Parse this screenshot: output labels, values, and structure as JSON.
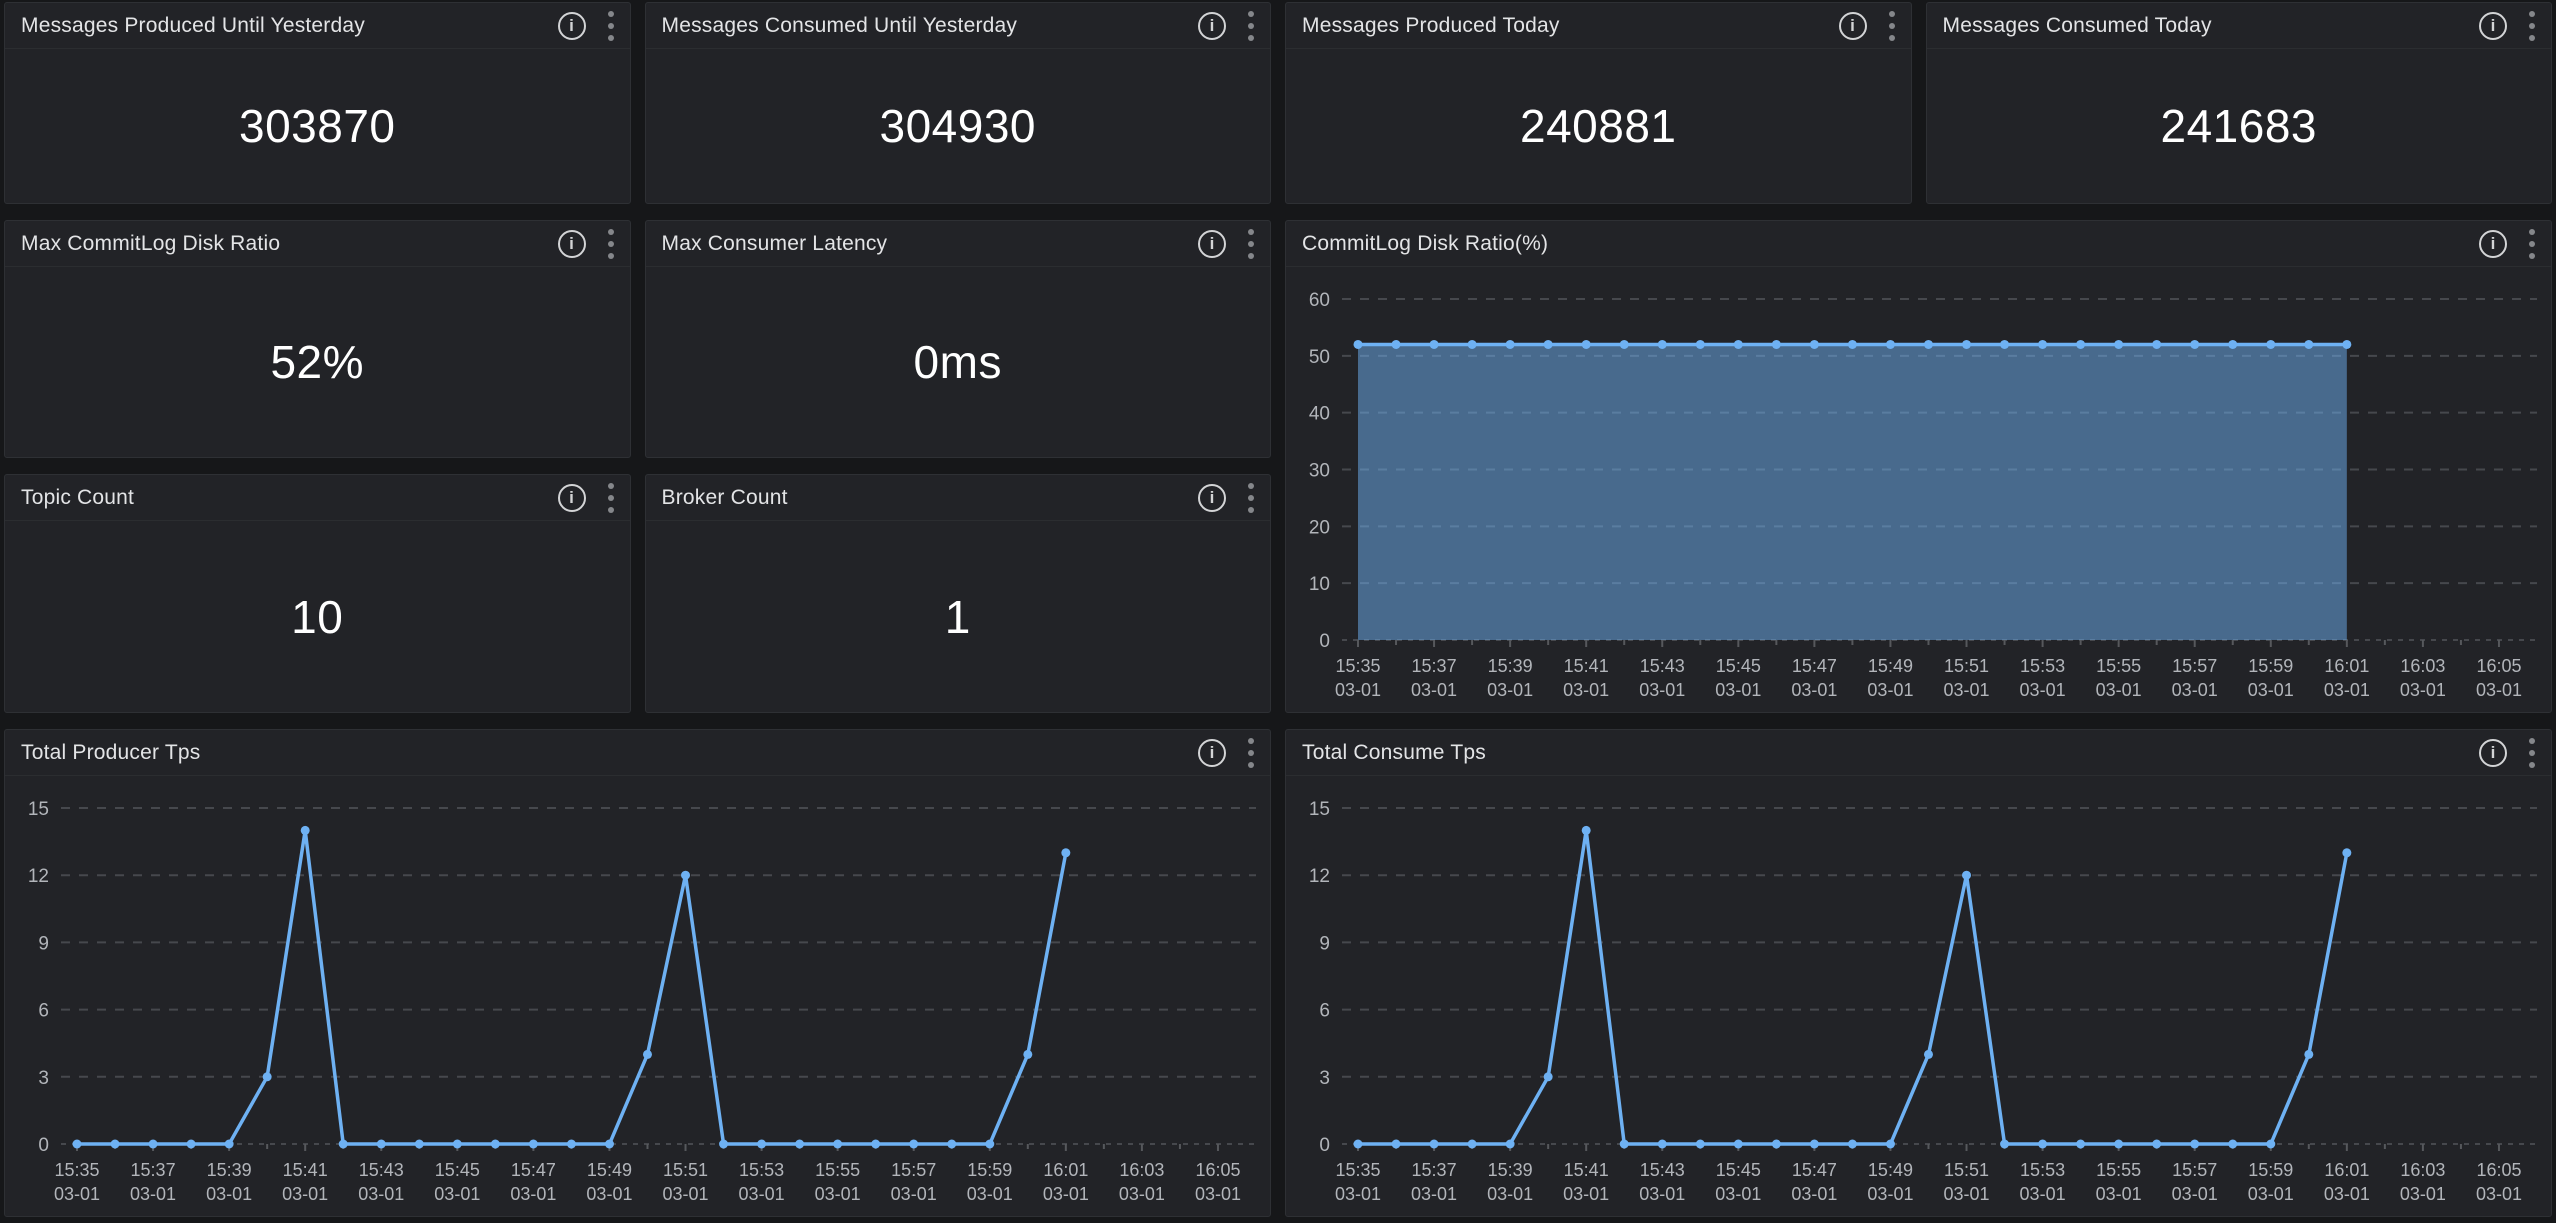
{
  "icons": {
    "info_glyph": "i"
  },
  "colors": {
    "line_blue": "#6eb1f3",
    "fill_blue": "rgba(110,177,243,0.5)",
    "grid": "#46484d",
    "tick": "#56585c",
    "axis_text": "#b2b5ba",
    "panel_bg": "#222327",
    "page_bg": "#161719"
  },
  "stat_panels": [
    {
      "title": "Messages Produced Until Yesterday",
      "value": "303870"
    },
    {
      "title": "Messages Consumed Until Yesterday",
      "value": "304930"
    },
    {
      "title": "Messages Produced Today",
      "value": "240881"
    },
    {
      "title": "Messages Consumed Today",
      "value": "241683"
    },
    {
      "title": "Max CommitLog Disk Ratio",
      "value": "52%"
    },
    {
      "title": "Max Consumer Latency",
      "value": "0ms"
    },
    {
      "title": "Topic Count",
      "value": "10"
    },
    {
      "title": "Broker Count",
      "value": "1"
    }
  ],
  "chart_data": [
    {
      "type": "area",
      "title": "CommitLog Disk Ratio(%)",
      "x_tick_labels": [
        "15:35",
        "15:37",
        "15:39",
        "15:41",
        "15:43",
        "15:45",
        "15:47",
        "15:49",
        "15:51",
        "15:53",
        "15:55",
        "15:57",
        "15:59",
        "16:01",
        "16:03",
        "16:05"
      ],
      "x_tick_sublabel": "03-01",
      "x_tick_step_minutes": 2,
      "x_interval_minutes": 1,
      "x_axis_total_minutes": 31,
      "values": [
        52,
        52,
        52,
        52,
        52,
        52,
        52,
        52,
        52,
        52,
        52,
        52,
        52,
        52,
        52,
        52,
        52,
        52,
        52,
        52,
        52,
        52,
        52,
        52,
        52,
        52,
        52
      ],
      "ylim": [
        0,
        60
      ],
      "yticks": [
        0,
        10,
        20,
        30,
        40,
        50,
        60
      ],
      "grid": "dashed horizontal",
      "legend": false,
      "fill_opacity": 0.5,
      "markers": true
    },
    {
      "type": "line",
      "title": "Total Producer Tps",
      "x_tick_labels": [
        "15:35",
        "15:37",
        "15:39",
        "15:41",
        "15:43",
        "15:45",
        "15:47",
        "15:49",
        "15:51",
        "15:53",
        "15:55",
        "15:57",
        "15:59",
        "16:01",
        "16:03",
        "16:05"
      ],
      "x_tick_sublabel": "03-01",
      "x_tick_step_minutes": 2,
      "x_interval_minutes": 1,
      "x_axis_total_minutes": 31,
      "values": [
        0,
        0,
        0,
        0,
        0,
        3,
        14,
        0,
        0,
        0,
        0,
        0,
        0,
        0,
        0,
        4,
        12,
        0,
        0,
        0,
        0,
        0,
        0,
        0,
        0,
        4,
        13
      ],
      "ylim": [
        0,
        15
      ],
      "yticks": [
        0,
        3,
        6,
        9,
        12,
        15
      ],
      "grid": "dashed horizontal",
      "legend": false,
      "fill_opacity": 0,
      "markers": true
    },
    {
      "type": "line",
      "title": "Total Consume Tps",
      "x_tick_labels": [
        "15:35",
        "15:37",
        "15:39",
        "15:41",
        "15:43",
        "15:45",
        "15:47",
        "15:49",
        "15:51",
        "15:53",
        "15:55",
        "15:57",
        "15:59",
        "16:01",
        "16:03",
        "16:05"
      ],
      "x_tick_sublabel": "03-01",
      "x_tick_step_minutes": 2,
      "x_interval_minutes": 1,
      "x_axis_total_minutes": 31,
      "values": [
        0,
        0,
        0,
        0,
        0,
        3,
        14,
        0,
        0,
        0,
        0,
        0,
        0,
        0,
        0,
        4,
        12,
        0,
        0,
        0,
        0,
        0,
        0,
        0,
        0,
        4,
        13
      ],
      "ylim": [
        0,
        15
      ],
      "yticks": [
        0,
        3,
        6,
        9,
        12,
        15
      ],
      "grid": "dashed horizontal",
      "legend": false,
      "fill_opacity": 0,
      "markers": true
    }
  ]
}
